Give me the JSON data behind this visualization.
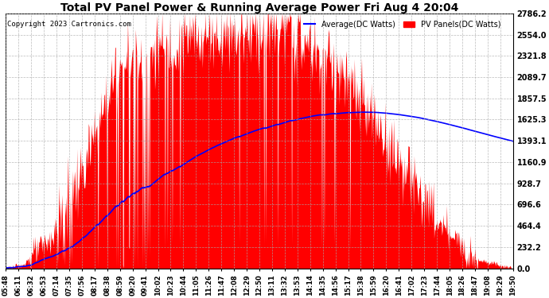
{
  "title": "Total PV Panel Power & Running Average Power Fri Aug 4 20:04",
  "copyright": "Copyright 2023 Cartronics.com",
  "legend_avg": "Average(DC Watts)",
  "legend_pv": "PV Panels(DC Watts)",
  "ymax": 2786.2,
  "yticks": [
    0.0,
    232.2,
    464.4,
    696.6,
    928.7,
    1160.9,
    1393.1,
    1625.3,
    1857.5,
    2089.7,
    2321.8,
    2554.0,
    2786.2
  ],
  "xtick_labels": [
    "05:48",
    "06:11",
    "06:32",
    "06:53",
    "07:14",
    "07:35",
    "07:56",
    "08:17",
    "08:38",
    "08:59",
    "09:20",
    "09:41",
    "10:02",
    "10:23",
    "10:44",
    "11:05",
    "11:26",
    "11:47",
    "12:08",
    "12:29",
    "12:50",
    "13:11",
    "13:32",
    "13:53",
    "14:14",
    "14:35",
    "14:56",
    "15:17",
    "15:38",
    "15:59",
    "16:20",
    "16:41",
    "17:02",
    "17:23",
    "17:44",
    "18:05",
    "18:26",
    "18:47",
    "19:08",
    "19:29",
    "19:50"
  ],
  "n_xticks": 41,
  "pv_color": "#ff0000",
  "avg_color": "#0000ff",
  "bg_color": "#ffffff",
  "grid_color": "#aaaaaa",
  "title_color": "#000000",
  "copyright_color": "#000000",
  "legend_avg_color": "#0000ff",
  "legend_pv_color": "#ff0000"
}
